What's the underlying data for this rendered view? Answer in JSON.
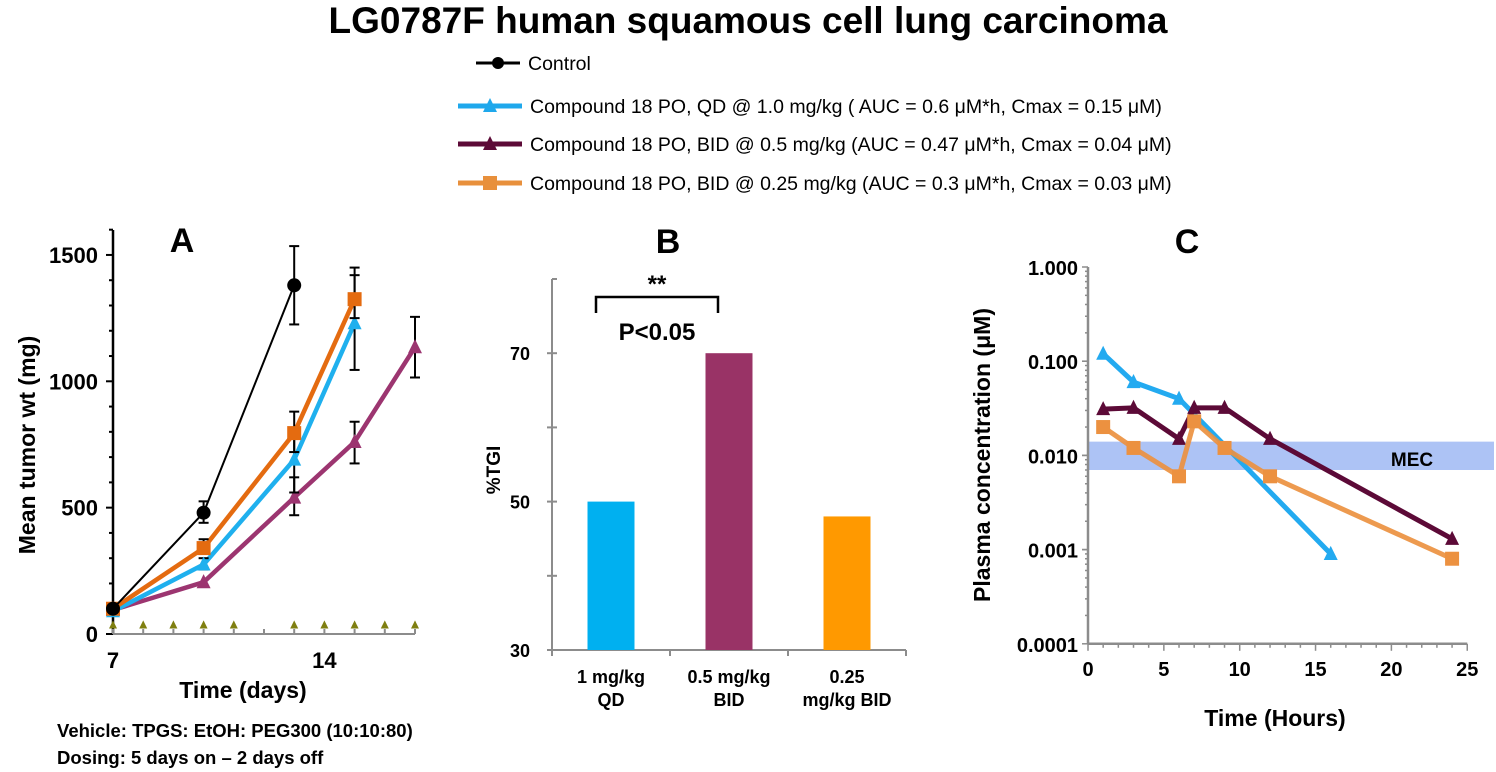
{
  "title": "LG0787F human squamous cell lung carcinoma",
  "legend": [
    {
      "label": "Control",
      "color": "#000000",
      "marker": "circle"
    },
    {
      "label": "Compound 18  PO, QD @ 1.0 mg/kg ( AUC = 0.6 μM*h, Cmax = 0.15 μM)",
      "color": "#1fa8ec",
      "marker": "triangle"
    },
    {
      "label": "Compound 18 PO, BID @ 0.5 mg/kg  (AUC = 0.47 μM*h, Cmax = 0.04 μM)",
      "color": "#5c0a37",
      "marker": "triangle"
    },
    {
      "label": "Compound 18 PO, BID @ 0.25 mg/kg (AUC = 0.3 μM*h, Cmax = 0.03 μM)",
      "color": "#e8903c",
      "marker": "square"
    }
  ],
  "chart_data": [
    {
      "panel": "A",
      "type": "line",
      "title": "A",
      "xlabel": "Time (days)",
      "ylabel": "Mean tumor wt (mg)",
      "xlim": [
        7,
        17
      ],
      "ylim": [
        0,
        1600
      ],
      "xticks": [
        7,
        14
      ],
      "yticks": [
        0,
        500,
        1000,
        1500
      ],
      "dosing_days": [
        7,
        8,
        9,
        10,
        11,
        13,
        14,
        15,
        16,
        17
      ],
      "series": [
        {
          "name": "Control",
          "color": "#000000",
          "marker": "circle",
          "x": [
            7,
            10,
            13
          ],
          "values": [
            100,
            480,
            1380
          ],
          "err_low": [
            100,
            440,
            1225
          ],
          "err_high": [
            100,
            525,
            1535
          ]
        },
        {
          "name": "Compound 18 PO, QD @ 1.0 mg/kg",
          "color": "#1fb0ee",
          "marker": "triangle",
          "x": [
            7,
            10,
            13,
            15
          ],
          "values": [
            90,
            275,
            690,
            1230
          ],
          "err_low": [
            90,
            255,
            560,
            1045
          ],
          "err_high": [
            90,
            300,
            800,
            1420
          ]
        },
        {
          "name": "Compound 18 PO, BID @ 0.5 mg/kg",
          "color": "#9c3570",
          "marker": "triangle",
          "x": [
            7,
            10,
            13,
            15,
            17
          ],
          "values": [
            95,
            205,
            540,
            760,
            1135
          ],
          "err_low": [
            95,
            205,
            470,
            675,
            1015
          ],
          "err_high": [
            95,
            205,
            620,
            840,
            1255
          ]
        },
        {
          "name": "Compound 18 PO, BID @ 0.25 mg/kg",
          "color": "#e46b10",
          "marker": "square",
          "x": [
            7,
            10,
            13,
            15
          ],
          "values": [
            100,
            340,
            795,
            1325
          ],
          "err_low": [
            100,
            320,
            720,
            1250
          ],
          "err_high": [
            100,
            375,
            880,
            1450
          ]
        }
      ],
      "notes": [
        "Vehicle: TPGS: EtOH: PEG300 (10:10:80)",
        "Dosing: 5 days on – 2 days off"
      ]
    },
    {
      "panel": "B",
      "type": "bar",
      "title": "B",
      "ylabel": "%TGI",
      "ylim": [
        30,
        80
      ],
      "yticks": [
        30,
        50,
        70
      ],
      "categories": [
        [
          "1 mg/kg",
          "QD"
        ],
        [
          "0.5 mg/kg",
          "BID"
        ],
        [
          "0.25",
          "mg/kg BID"
        ]
      ],
      "values": [
        50,
        70,
        48
      ],
      "colors": [
        "#00b0f0",
        "#993366",
        "#ff9900"
      ],
      "annotation": {
        "stars": "**",
        "text": "P<0.05",
        "between": [
          0,
          1
        ]
      }
    },
    {
      "panel": "C",
      "type": "line",
      "title": "C",
      "xlabel": "Time (Hours)",
      "ylabel": "Plasma concentration (μM)",
      "yscale": "log",
      "xlim": [
        0,
        25
      ],
      "ylim": [
        0.0001,
        1
      ],
      "xticks": [
        0,
        5,
        10,
        15,
        20,
        25
      ],
      "yticks": [
        1,
        0.1,
        0.01,
        0.001,
        0.0001
      ],
      "ytick_labels": [
        "1.000",
        "0.100",
        "0.010",
        "0.001",
        "0.0001"
      ],
      "band": {
        "label": "MEC",
        "low": 0.007,
        "high": 0.014,
        "color": "#adc3f5"
      },
      "series": [
        {
          "name": "Compound 18 PO, QD @ 1.0 mg/kg",
          "color": "#23aaf0",
          "marker": "triangle",
          "x": [
            1,
            3,
            6,
            16
          ],
          "values": [
            0.12,
            0.06,
            0.04,
            0.0009
          ]
        },
        {
          "name": "Compound 18 PO, BID @ 0.5 mg/kg",
          "color": "#5c0a37",
          "marker": "triangle",
          "x": [
            1,
            3,
            6,
            7,
            9,
            12,
            24
          ],
          "values": [
            0.031,
            0.032,
            0.015,
            0.032,
            0.032,
            0.015,
            0.0013
          ]
        },
        {
          "name": "Compound 18 PO, BID @ 0.25 mg/kg",
          "color": "#ec9140",
          "marker": "square",
          "x": [
            1,
            3,
            6,
            7,
            9,
            12,
            24
          ],
          "values": [
            0.02,
            0.012,
            0.006,
            0.023,
            0.012,
            0.006,
            0.0008
          ]
        }
      ]
    }
  ]
}
